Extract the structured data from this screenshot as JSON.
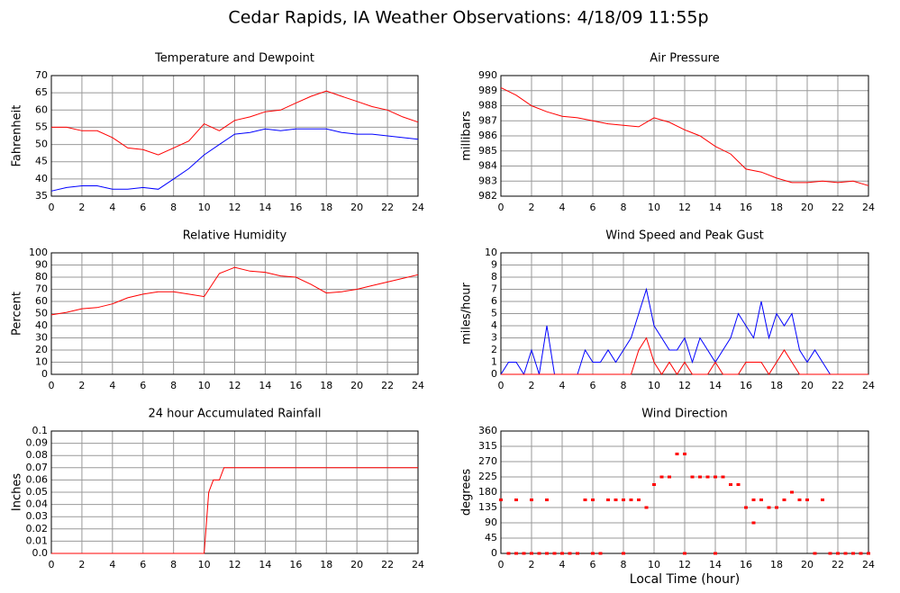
{
  "title": "Cedar Rapids, IA Weather Observations: 4/18/09 11:55p",
  "x_label": "Local Time (hour)",
  "chart_data": [
    {
      "type": "line",
      "title": "Temperature and Dewpoint",
      "y_label": "Fahrenheit",
      "x": [
        0,
        1,
        2,
        3,
        4,
        5,
        6,
        7,
        8,
        9,
        10,
        11,
        12,
        13,
        14,
        15,
        16,
        17,
        18,
        19,
        20,
        21,
        22,
        23,
        24
      ],
      "series": [
        {
          "color": "#ff0000",
          "values": [
            55,
            55,
            54,
            54,
            52,
            49,
            48.5,
            47,
            49,
            51,
            56,
            54,
            57,
            58,
            59.5,
            60,
            62,
            64,
            65.5,
            64,
            62.5,
            61,
            60,
            58,
            56.5
          ]
        },
        {
          "color": "#0000ff",
          "values": [
            36.5,
            37.5,
            38,
            38,
            37,
            37,
            37.5,
            37,
            40,
            43,
            47,
            50,
            53,
            53.5,
            54.5,
            54,
            54.5,
            54.5,
            54.5,
            53.5,
            53,
            53,
            52.5,
            52,
            51.5
          ]
        }
      ],
      "xlim": [
        0,
        24
      ],
      "xticks": [
        0,
        2,
        4,
        6,
        8,
        10,
        12,
        14,
        16,
        18,
        20,
        22,
        24
      ],
      "ylim": [
        35,
        70
      ],
      "yticks": [
        35,
        40,
        45,
        50,
        55,
        60,
        65,
        70
      ]
    },
    {
      "type": "line",
      "title": "Air Pressure",
      "y_label": "millibars",
      "x": [
        0,
        1,
        2,
        3,
        4,
        5,
        6,
        7,
        8,
        9,
        10,
        11,
        12,
        13,
        14,
        15,
        16,
        17,
        18,
        19,
        20,
        21,
        22,
        23,
        24
      ],
      "series": [
        {
          "color": "#ff0000",
          "values": [
            989.2,
            988.7,
            988,
            987.6,
            987.3,
            987.2,
            987,
            986.8,
            986.7,
            986.6,
            987.2,
            986.9,
            986.4,
            986,
            985.3,
            984.8,
            983.8,
            983.6,
            983.2,
            982.9,
            982.9,
            983,
            982.9,
            983,
            982.7
          ]
        }
      ],
      "xlim": [
        0,
        24
      ],
      "xticks": [
        0,
        2,
        4,
        6,
        8,
        10,
        12,
        14,
        16,
        18,
        20,
        22,
        24
      ],
      "ylim": [
        982,
        990
      ],
      "yticks": [
        982,
        983,
        984,
        985,
        986,
        987,
        988,
        989,
        990
      ]
    },
    {
      "type": "line",
      "title": "Relative Humidity",
      "y_label": "Percent",
      "x": [
        0,
        1,
        2,
        3,
        4,
        5,
        6,
        7,
        8,
        9,
        10,
        11,
        12,
        13,
        14,
        15,
        16,
        17,
        18,
        19,
        20,
        21,
        22,
        23,
        24
      ],
      "series": [
        {
          "color": "#ff0000",
          "values": [
            49,
            51,
            54,
            55,
            58,
            63,
            66,
            68,
            68,
            66,
            64,
            83,
            88,
            85,
            84,
            81,
            80,
            74,
            67,
            68,
            70,
            73,
            76,
            79,
            82
          ]
        }
      ],
      "xlim": [
        0,
        24
      ],
      "xticks": [
        0,
        2,
        4,
        6,
        8,
        10,
        12,
        14,
        16,
        18,
        20,
        22,
        24
      ],
      "ylim": [
        0,
        100
      ],
      "yticks": [
        0,
        10,
        20,
        30,
        40,
        50,
        60,
        70,
        80,
        90,
        100
      ]
    },
    {
      "type": "line",
      "title": "Wind Speed and Peak Gust",
      "y_label": "miles/hour",
      "x": [
        0,
        0.5,
        1,
        1.5,
        2,
        2.5,
        3,
        3.5,
        4,
        4.5,
        5,
        5.5,
        6,
        6.5,
        7,
        7.5,
        8,
        8.5,
        9,
        9.5,
        10,
        10.5,
        11,
        11.5,
        12,
        12.5,
        13,
        13.5,
        14,
        14.5,
        15,
        15.5,
        16,
        16.5,
        17,
        17.5,
        18,
        18.5,
        19,
        19.5,
        20,
        20.5,
        21,
        21.5,
        22,
        22.5,
        23,
        23.5,
        24
      ],
      "series": [
        {
          "color": "#0000ff",
          "values": [
            0,
            1,
            1,
            0,
            2,
            0,
            4,
            0,
            0,
            0,
            0,
            2,
            1,
            1,
            2,
            1,
            2,
            3,
            5,
            7,
            4,
            3,
            2,
            2,
            3,
            1,
            3,
            2,
            1,
            2,
            3,
            5,
            4,
            3,
            6,
            3,
            5,
            4,
            5,
            2,
            1,
            2,
            1,
            0,
            0,
            0,
            0,
            0,
            0
          ]
        },
        {
          "color": "#ff0000",
          "values": [
            0,
            0,
            0,
            0,
            0,
            0,
            0,
            0,
            0,
            0,
            0,
            0,
            0,
            0,
            0,
            0,
            0,
            0,
            2,
            3,
            1,
            0,
            1,
            0,
            1,
            0,
            0,
            0,
            1,
            0,
            0,
            0,
            1,
            1,
            1,
            0,
            1,
            2,
            1,
            0,
            0,
            0,
            0,
            0,
            0,
            0,
            0,
            0,
            0
          ]
        }
      ],
      "xlim": [
        0,
        24
      ],
      "xticks": [
        0,
        2,
        4,
        6,
        8,
        10,
        12,
        14,
        16,
        18,
        20,
        22,
        24
      ],
      "ylim": [
        0,
        10
      ],
      "yticks": [
        0,
        1,
        2,
        3,
        4,
        5,
        6,
        7,
        8,
        9,
        10
      ]
    },
    {
      "type": "line",
      "title": "24 hour Accumulated Rainfall",
      "y_label": "Inches",
      "x": [
        0,
        10,
        10.3,
        10.6,
        11,
        11.3,
        24
      ],
      "series": [
        {
          "color": "#ff0000",
          "values": [
            0,
            0,
            0.05,
            0.06,
            0.06,
            0.07,
            0.07
          ]
        }
      ],
      "xlim": [
        0,
        24
      ],
      "xticks": [
        0,
        2,
        4,
        6,
        8,
        10,
        12,
        14,
        16,
        18,
        20,
        22,
        24
      ],
      "ylim": [
        0,
        0.1
      ],
      "yticks": [
        {
          "value": 0,
          "label": "0.0"
        },
        0.01,
        0.02,
        0.03,
        0.04,
        0.05,
        0.06,
        0.07,
        0.08,
        0.09,
        0.1
      ]
    },
    {
      "type": "scatter",
      "title": "Wind Direction",
      "y_label": "degrees",
      "x": [
        0,
        0.5,
        1,
        1,
        1.5,
        2,
        2,
        2.5,
        3,
        3,
        3.5,
        4,
        4.5,
        5,
        5.5,
        6,
        6,
        6.5,
        7,
        7.5,
        8,
        8,
        8.5,
        9,
        9.5,
        10,
        10.5,
        11,
        11.5,
        12,
        12,
        12.5,
        13,
        13.5,
        14,
        14,
        14.5,
        15,
        15.5,
        16,
        16.5,
        16.5,
        17,
        17.5,
        18,
        18.5,
        19,
        19.5,
        20,
        20.5,
        21,
        21.5,
        22,
        22.5,
        23,
        23.5,
        24
      ],
      "series": [
        {
          "color": "#ff0000",
          "values": [
            157.5,
            0,
            157.5,
            0,
            0,
            157.5,
            0,
            0,
            157.5,
            0,
            0,
            0,
            0,
            0,
            157.5,
            157.5,
            0,
            0,
            157.5,
            157.5,
            157.5,
            0,
            157.5,
            157.5,
            135,
            202.5,
            225,
            225,
            292.5,
            292.5,
            0,
            225,
            225,
            225,
            225,
            0,
            225,
            202.5,
            202.5,
            135,
            157.5,
            90,
            157.5,
            135,
            135,
            157.5,
            180,
            157.5,
            157.5,
            0,
            157.5,
            0,
            0,
            0,
            0,
            0,
            0
          ]
        }
      ],
      "xlim": [
        0,
        24
      ],
      "xticks": [
        0,
        2,
        4,
        6,
        8,
        10,
        12,
        14,
        16,
        18,
        20,
        22,
        24
      ],
      "ylim": [
        0,
        360
      ],
      "yticks": [
        0,
        45,
        90,
        135,
        180,
        225,
        270,
        315,
        360
      ]
    }
  ]
}
